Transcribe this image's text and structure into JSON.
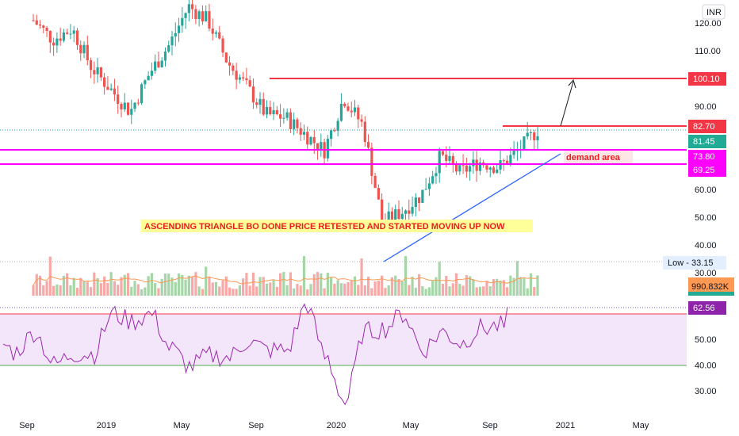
{
  "currency": "INR",
  "chart_data": {
    "type": "candlestick",
    "x_axis_labels": [
      "Sep",
      "2019",
      "May",
      "Sep",
      "2020",
      "May",
      "Sep",
      "2021",
      "May"
    ],
    "price_scale": {
      "ylim": [
        30,
        126
      ],
      "ticks": [
        "30.00",
        "40.00",
        "50.00",
        "60.00",
        "90.00",
        "110.00",
        "120.00"
      ]
    },
    "price_series": {
      "name": "Price",
      "points": [
        {
          "date": "2018-09",
          "close": 121
        },
        {
          "date": "2018-10",
          "close": 114
        },
        {
          "date": "2018-11",
          "close": 118
        },
        {
          "date": "2018-12",
          "close": 104
        },
        {
          "date": "2019-01",
          "close": 96
        },
        {
          "date": "2019-02",
          "close": 88
        },
        {
          "date": "2019-03",
          "close": 102
        },
        {
          "date": "2019-04",
          "close": 112
        },
        {
          "date": "2019-05",
          "close": 126
        },
        {
          "date": "2019-06",
          "close": 121
        },
        {
          "date": "2019-07",
          "close": 106
        },
        {
          "date": "2019-08",
          "close": 97
        },
        {
          "date": "2019-09",
          "close": 87
        },
        {
          "date": "2019-10",
          "close": 86
        },
        {
          "date": "2019-11",
          "close": 80
        },
        {
          "date": "2019-12",
          "close": 74
        },
        {
          "date": "2020-01",
          "close": 93
        },
        {
          "date": "2020-02",
          "close": 83
        },
        {
          "date": "2020-03",
          "close": 48
        },
        {
          "date": "2020-04",
          "close": 52
        },
        {
          "date": "2020-05",
          "close": 58
        },
        {
          "date": "2020-06",
          "close": 72
        },
        {
          "date": "2020-07",
          "close": 66
        },
        {
          "date": "2020-08",
          "close": 70
        },
        {
          "date": "2020-09",
          "close": 68
        },
        {
          "date": "2020-10",
          "close": 74
        },
        {
          "date": "2020-11",
          "close": 81.45
        }
      ]
    },
    "price_levels": [
      {
        "label": "100.10",
        "value": 100.1,
        "color": "#f23645"
      },
      {
        "label": "82.70",
        "value": 82.7,
        "color": "#f23645"
      },
      {
        "label": "81.45",
        "value": 81.45,
        "color": "#22ab94"
      },
      {
        "label": "73.80",
        "value": 73.8,
        "color": "#ff00ff"
      },
      {
        "label": "69.25",
        "value": 69.25,
        "color": "#ff00ff"
      }
    ],
    "low_label": "Low - 33.15",
    "volume": {
      "last_label": "990.832K"
    },
    "rsi": {
      "value_label": "62.56",
      "ticks": [
        "30.00",
        "40.00",
        "50.00"
      ],
      "upper_band": 60,
      "lower_band": 40,
      "ylim": [
        22,
        66
      ]
    }
  },
  "annotations": {
    "main_text": "ASCENDING TRIANGLE BO DONE PRICE RETESTED AND STARTED MOVING UP NOW",
    "demand_area": "demand area"
  }
}
